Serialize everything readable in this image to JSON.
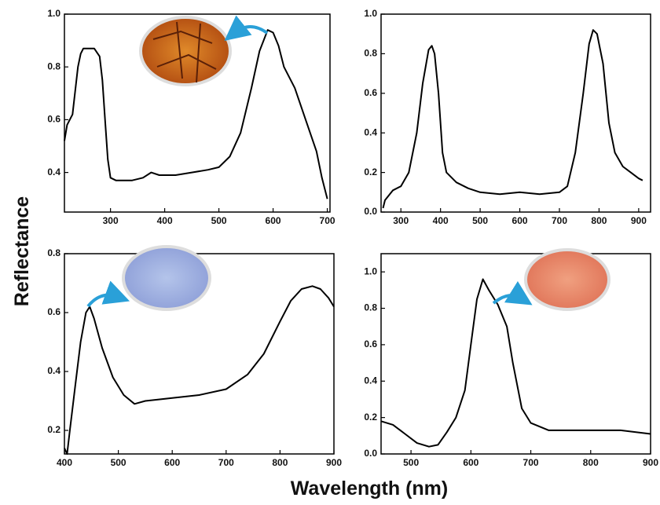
{
  "ylabel": "Reflectance",
  "xlabel": "Wavelength (nm)",
  "chart_data": [
    {
      "type": "line",
      "color": "#000000",
      "xlim": [
        215,
        705
      ],
      "ylim": [
        0.25,
        1.0
      ],
      "xticks": [
        300,
        400,
        500,
        600,
        700
      ],
      "yticks": [
        0.4,
        0.6,
        0.8,
        {
          "value": 1,
          "label": "1.0"
        }
      ],
      "x": [
        215,
        220,
        230,
        240,
        245,
        250,
        260,
        270,
        280,
        285,
        290,
        295,
        300,
        310,
        340,
        360,
        375,
        390,
        420,
        450,
        480,
        500,
        520,
        540,
        560,
        575,
        590,
        600,
        610,
        620,
        640,
        660,
        680,
        690,
        700
      ],
      "values": [
        0.52,
        0.58,
        0.62,
        0.8,
        0.85,
        0.87,
        0.87,
        0.87,
        0.84,
        0.75,
        0.6,
        0.45,
        0.38,
        0.37,
        0.37,
        0.38,
        0.4,
        0.39,
        0.39,
        0.4,
        0.41,
        0.42,
        0.46,
        0.55,
        0.72,
        0.86,
        0.94,
        0.93,
        0.88,
        0.8,
        0.72,
        0.6,
        0.48,
        0.38,
        0.3
      ]
    },
    {
      "type": "line",
      "color": "#000000",
      "xlim": [
        250,
        930
      ],
      "ylim": [
        0,
        1.0
      ],
      "xticks": [
        300,
        400,
        500,
        600,
        700,
        800,
        900
      ],
      "yticks": [
        {
          "value": 0,
          "label": "0.0"
        },
        0.2,
        0.4,
        0.6,
        0.8,
        {
          "value": 1,
          "label": "1.0"
        }
      ],
      "x": [
        255,
        260,
        280,
        300,
        320,
        340,
        355,
        370,
        378,
        385,
        395,
        405,
        415,
        440,
        470,
        500,
        550,
        600,
        650,
        700,
        720,
        740,
        760,
        775,
        785,
        795,
        810,
        825,
        840,
        860,
        880,
        900,
        910
      ],
      "values": [
        0.02,
        0.06,
        0.11,
        0.13,
        0.2,
        0.4,
        0.65,
        0.82,
        0.84,
        0.8,
        0.6,
        0.3,
        0.2,
        0.15,
        0.12,
        0.1,
        0.09,
        0.1,
        0.09,
        0.1,
        0.13,
        0.3,
        0.6,
        0.85,
        0.92,
        0.9,
        0.75,
        0.45,
        0.3,
        0.23,
        0.2,
        0.17,
        0.16
      ]
    },
    {
      "type": "line",
      "color": "#000000",
      "xlim": [
        400,
        900
      ],
      "ylim": [
        0.12,
        0.8
      ],
      "xticks": [
        400,
        500,
        600,
        700,
        800,
        900
      ],
      "yticks": [
        0.2,
        0.4,
        0.6,
        0.8
      ],
      "x": [
        400,
        405,
        410,
        420,
        430,
        440,
        447,
        455,
        470,
        490,
        510,
        530,
        550,
        600,
        650,
        700,
        740,
        770,
        800,
        820,
        840,
        860,
        875,
        890,
        900
      ],
      "values": [
        0.14,
        0.12,
        0.2,
        0.35,
        0.5,
        0.6,
        0.62,
        0.58,
        0.48,
        0.38,
        0.32,
        0.29,
        0.3,
        0.31,
        0.32,
        0.34,
        0.39,
        0.46,
        0.57,
        0.64,
        0.68,
        0.69,
        0.68,
        0.65,
        0.62
      ]
    },
    {
      "type": "line",
      "color": "#000000",
      "xlim": [
        450,
        900
      ],
      "ylim": [
        0,
        1.1
      ],
      "xticks": [
        500,
        600,
        700,
        800,
        900
      ],
      "yticks": [
        {
          "value": 0,
          "label": "0.0"
        },
        0.2,
        0.4,
        0.6,
        0.8,
        {
          "value": 1,
          "label": "1.0"
        }
      ],
      "x": [
        450,
        470,
        490,
        510,
        530,
        545,
        560,
        575,
        590,
        600,
        610,
        620,
        630,
        645,
        660,
        670,
        685,
        700,
        730,
        780,
        850,
        900
      ],
      "values": [
        0.18,
        0.16,
        0.11,
        0.06,
        0.04,
        0.05,
        0.12,
        0.2,
        0.35,
        0.6,
        0.85,
        0.96,
        0.9,
        0.82,
        0.7,
        0.5,
        0.25,
        0.17,
        0.13,
        0.13,
        0.13,
        0.11
      ]
    }
  ]
}
